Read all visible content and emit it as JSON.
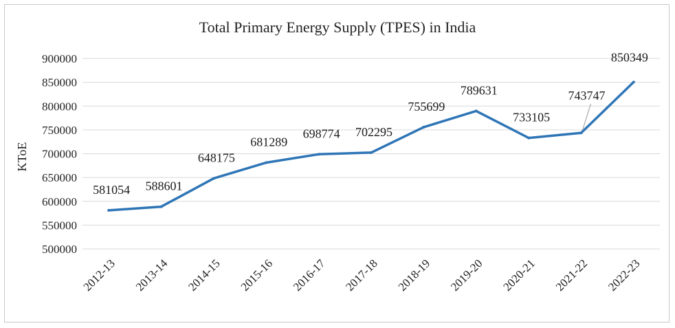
{
  "chart_data": {
    "type": "line",
    "title": "Total Primary Energy Supply (TPES) in India",
    "xlabel": "",
    "ylabel": "KToE",
    "categories": [
      "2012-13",
      "2013-14",
      "2014-15",
      "2015-16",
      "2016-17",
      "2017-18",
      "2018-19",
      "2019-20",
      "2020-21",
      "2021-22",
      "2022-23"
    ],
    "series": [
      {
        "name": "TPES",
        "color": "#2e75b6",
        "values": [
          581054,
          588601,
          648175,
          681289,
          698774,
          702295,
          755699,
          789631,
          733105,
          743747,
          850349
        ]
      }
    ],
    "ylim": [
      500000,
      900000
    ],
    "yticks": [
      500000,
      550000,
      600000,
      650000,
      700000,
      750000,
      800000,
      850000,
      900000
    ],
    "grid": true,
    "legend": "none"
  }
}
